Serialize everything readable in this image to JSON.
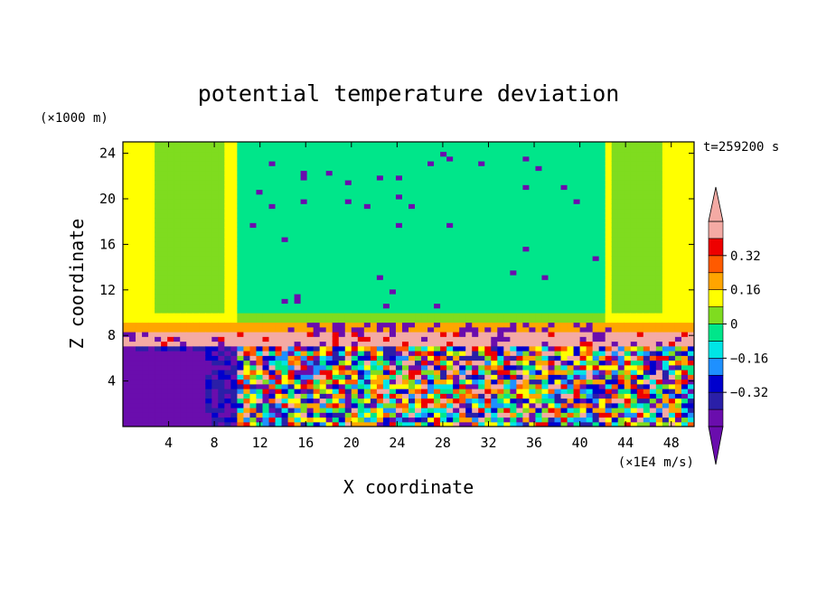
{
  "chart_data": {
    "type": "heatmap",
    "title": "potential temperature deviation",
    "xlabel": "X coordinate",
    "ylabel": "Z coordinate",
    "x_unit": "(×1E4 m/s)",
    "y_unit": "(×1000 m)",
    "time_label": "t=259200 s",
    "xlim": [
      0,
      50
    ],
    "ylim": [
      0,
      25
    ],
    "x_ticks": [
      4,
      8,
      12,
      16,
      20,
      24,
      28,
      32,
      36,
      40,
      44,
      48
    ],
    "y_ticks": [
      4,
      8,
      12,
      16,
      20,
      24
    ],
    "colorbar": {
      "levels": [
        -0.48,
        -0.4,
        -0.32,
        -0.24,
        -0.16,
        -0.08,
        0,
        0.08,
        0.16,
        0.24,
        0.32,
        0.4,
        0.48
      ],
      "tick_labels": [
        "0.32",
        "0.16",
        "0",
        "−0.16",
        "−0.32"
      ],
      "tick_values": [
        0.32,
        0.16,
        0,
        -0.16,
        -0.32
      ],
      "colors": [
        "#6a0dad",
        "#2a1fa8",
        "#0000cd",
        "#1e90ff",
        "#00e5e5",
        "#00e68a",
        "#7fdc1f",
        "#ffff00",
        "#ffa500",
        "#ff5a00",
        "#ee0000",
        "#f4aaa4"
      ]
    }
  }
}
